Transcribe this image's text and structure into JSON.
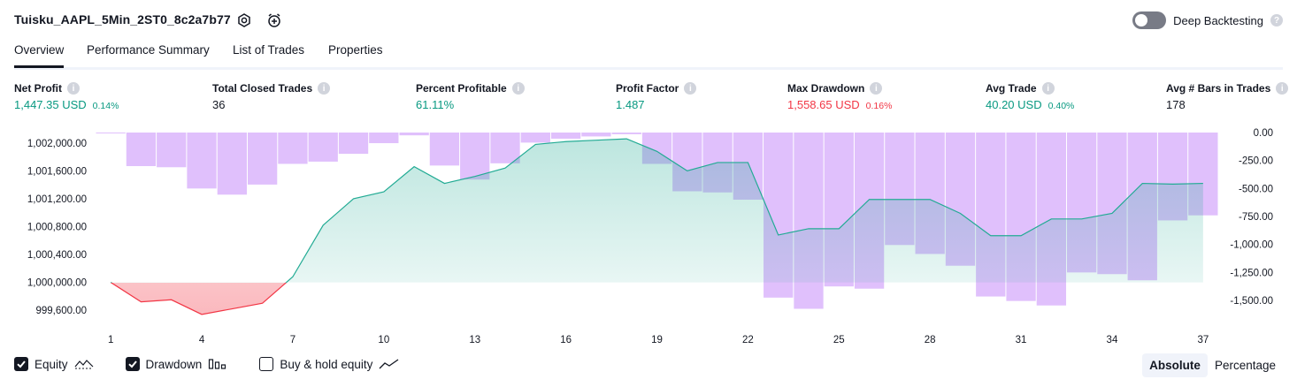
{
  "header": {
    "title": "Tuisku_AAPL_5Min_2ST0_8c2a7b77",
    "deep_backtesting_label": "Deep Backtesting"
  },
  "tabs": [
    {
      "label": "Overview",
      "active": true
    },
    {
      "label": "Performance Summary",
      "active": false
    },
    {
      "label": "List of Trades",
      "active": false
    },
    {
      "label": "Properties",
      "active": false
    }
  ],
  "stats": [
    {
      "label": "Net Profit",
      "value": "1,447.35 USD",
      "pct": "0.14%",
      "tone": "pos"
    },
    {
      "label": "Total Closed Trades",
      "value": "36",
      "pct": "",
      "tone": "neu"
    },
    {
      "label": "Percent Profitable",
      "value": "61.11%",
      "pct": "",
      "tone": "pos"
    },
    {
      "label": "Profit Factor",
      "value": "1.487",
      "pct": "",
      "tone": "pos"
    },
    {
      "label": "Max Drawdown",
      "value": "1,558.65 USD",
      "pct": "0.16%",
      "tone": "neg"
    },
    {
      "label": "Avg Trade",
      "value": "40.20 USD",
      "pct": "0.40%",
      "tone": "pos"
    },
    {
      "label": "Avg # Bars in Trades",
      "value": "178",
      "pct": "",
      "tone": "neu"
    }
  ],
  "colors": {
    "positive": "#089981",
    "negative": "#f23645",
    "equity_line": "#22ab94",
    "drawdown_bar": "#c78dfa"
  },
  "chart_data": {
    "type": "line",
    "x": [
      1,
      2,
      3,
      4,
      5,
      6,
      7,
      8,
      9,
      10,
      11,
      12,
      13,
      14,
      15,
      16,
      17,
      18,
      19,
      20,
      21,
      22,
      23,
      24,
      25,
      26,
      27,
      28,
      29,
      30,
      31,
      32,
      33,
      34,
      35,
      36,
      37
    ],
    "x_ticks": [
      "1",
      "4",
      "7",
      "10",
      "13",
      "16",
      "19",
      "22",
      "25",
      "28",
      "31",
      "34",
      "37"
    ],
    "equity_axis": {
      "ylim": [
        999500,
        1002150
      ],
      "ticks": [
        "1,002,000.00",
        "1,001,600.00",
        "1,001,200.00",
        "1,000,800.00",
        "1,000,400.00",
        "1,000,000.00",
        "999,600.00"
      ],
      "baseline": 1000000
    },
    "drawdown_axis": {
      "ylim": [
        -1650,
        0
      ],
      "ticks": [
        "0.00",
        "-250.00",
        "-500.00",
        "-750.00",
        "-1,000.00",
        "-1,250.00",
        "-1,500.00"
      ]
    },
    "series": [
      {
        "name": "Equity",
        "kind": "line",
        "values": [
          1000000,
          999720,
          999750,
          999540,
          999620,
          999700,
          1000080,
          1000820,
          1001200,
          1001300,
          1001660,
          1001420,
          1001520,
          1001640,
          1001980,
          1002020,
          1002040,
          1002060,
          1001880,
          1001600,
          1001720,
          1001720,
          1000680,
          1000770,
          1000770,
          1001190,
          1001190,
          1001190,
          1000990,
          1000670,
          1000670,
          1000910,
          1000910,
          1000990,
          1001420,
          1001410,
          1001420
        ]
      },
      {
        "name": "Drawdown",
        "kind": "bar",
        "values": [
          -5,
          -300,
          -310,
          -500,
          -555,
          -465,
          -280,
          -260,
          -190,
          -95,
          -25,
          -295,
          -420,
          -275,
          -90,
          -55,
          -35,
          -15,
          -280,
          -525,
          -535,
          -600,
          -1475,
          -1575,
          -1375,
          -1395,
          -1005,
          -1085,
          -1190,
          -1465,
          -1505,
          -1545,
          -1250,
          -1265,
          -1320,
          -785,
          -740
        ]
      }
    ]
  },
  "legend": [
    {
      "label": "Equity",
      "checked": true
    },
    {
      "label": "Drawdown",
      "checked": true
    },
    {
      "label": "Buy & hold equity",
      "checked": false
    }
  ],
  "modes": {
    "absolute": "Absolute",
    "percentage": "Percentage"
  }
}
